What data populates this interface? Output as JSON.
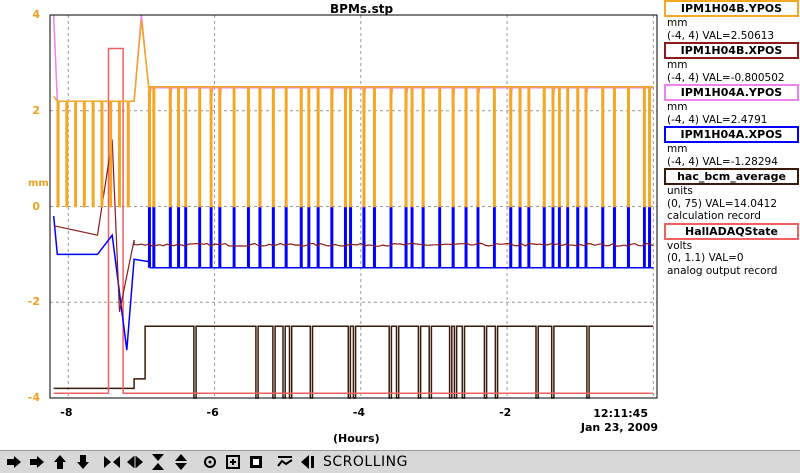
{
  "title": "BPMs.stp",
  "y_unit": "mm",
  "x_label": "(Hours)",
  "time_label": "12:11:45",
  "date_label": "Jan 23, 2009",
  "legend": [
    {
      "name": "IPM1H04B.YPOS",
      "unit": "mm",
      "range": "(-4, 4) VAL=2.50613",
      "record": "",
      "color": "#f5a623"
    },
    {
      "name": "IPM1H04B.XPOS",
      "unit": "mm",
      "range": "(-4, 4) VAL=-0.800502",
      "record": "",
      "color": "#8b1a1a"
    },
    {
      "name": "IPM1H04A.YPOS",
      "unit": "mm",
      "range": "(-4, 4) VAL=2.4791",
      "record": "",
      "color": "#ee82ee"
    },
    {
      "name": "IPM1H04A.XPOS",
      "unit": "mm",
      "range": "(-4, 4) VAL=-1.28294",
      "record": "",
      "color": "#0000ff"
    },
    {
      "name": "hac_bcm_average",
      "unit": "units",
      "range": "(0, 75) VAL=14.0412",
      "record": "calculation record",
      "color": "#3a1a0a"
    },
    {
      "name": "HallADAQState",
      "unit": "volts",
      "range": "(0, 1.1) VAL=0",
      "record": "analog output record",
      "color": "#f06060"
    }
  ],
  "toolbar": {
    "buttons": [
      {
        "name": "scroll-left-button",
        "glyph": "➡"
      },
      {
        "name": "scroll-right-button",
        "glyph": "➡"
      },
      {
        "name": "scroll-up-button",
        "glyph": "⬆"
      },
      {
        "name": "scroll-down-button",
        "glyph": "⬇"
      }
    ],
    "status": "SCROLLING"
  },
  "chart_data": {
    "type": "line",
    "title": "BPMs.stp",
    "xlabel": "(Hours)",
    "ylabel": "mm",
    "xlim": [
      -8.25,
      0.05
    ],
    "ylim": [
      -4,
      4
    ],
    "x_ticks": [
      -8,
      -6,
      -4,
      -2
    ],
    "y_ticks": [
      4,
      2,
      0,
      -2,
      -4
    ],
    "grid": true,
    "legend_position": "right",
    "series": [
      {
        "name": "IPM1H04B.YPOS",
        "color": "#f5a623",
        "baseline": 2.5,
        "dip": 0.0,
        "early": 2.2
      },
      {
        "name": "IPM1H04B.XPOS",
        "color": "#8b1a1a",
        "baseline": -0.8,
        "early": -0.7
      },
      {
        "name": "IPM1H04A.YPOS",
        "color": "#ee82ee",
        "baseline": 2.48,
        "early": 2.2
      },
      {
        "name": "IPM1H04A.XPOS",
        "color": "#0000ff",
        "baseline": -1.28,
        "rise": 0.0,
        "early": -1.0
      },
      {
        "name": "hac_bcm_average",
        "color": "#3a1a0a",
        "baseline": -2.5,
        "low": -4.0,
        "early": -3.8
      },
      {
        "name": "HallADAQState",
        "color": "#f06060",
        "high": 3.3,
        "low": -3.9
      }
    ]
  }
}
